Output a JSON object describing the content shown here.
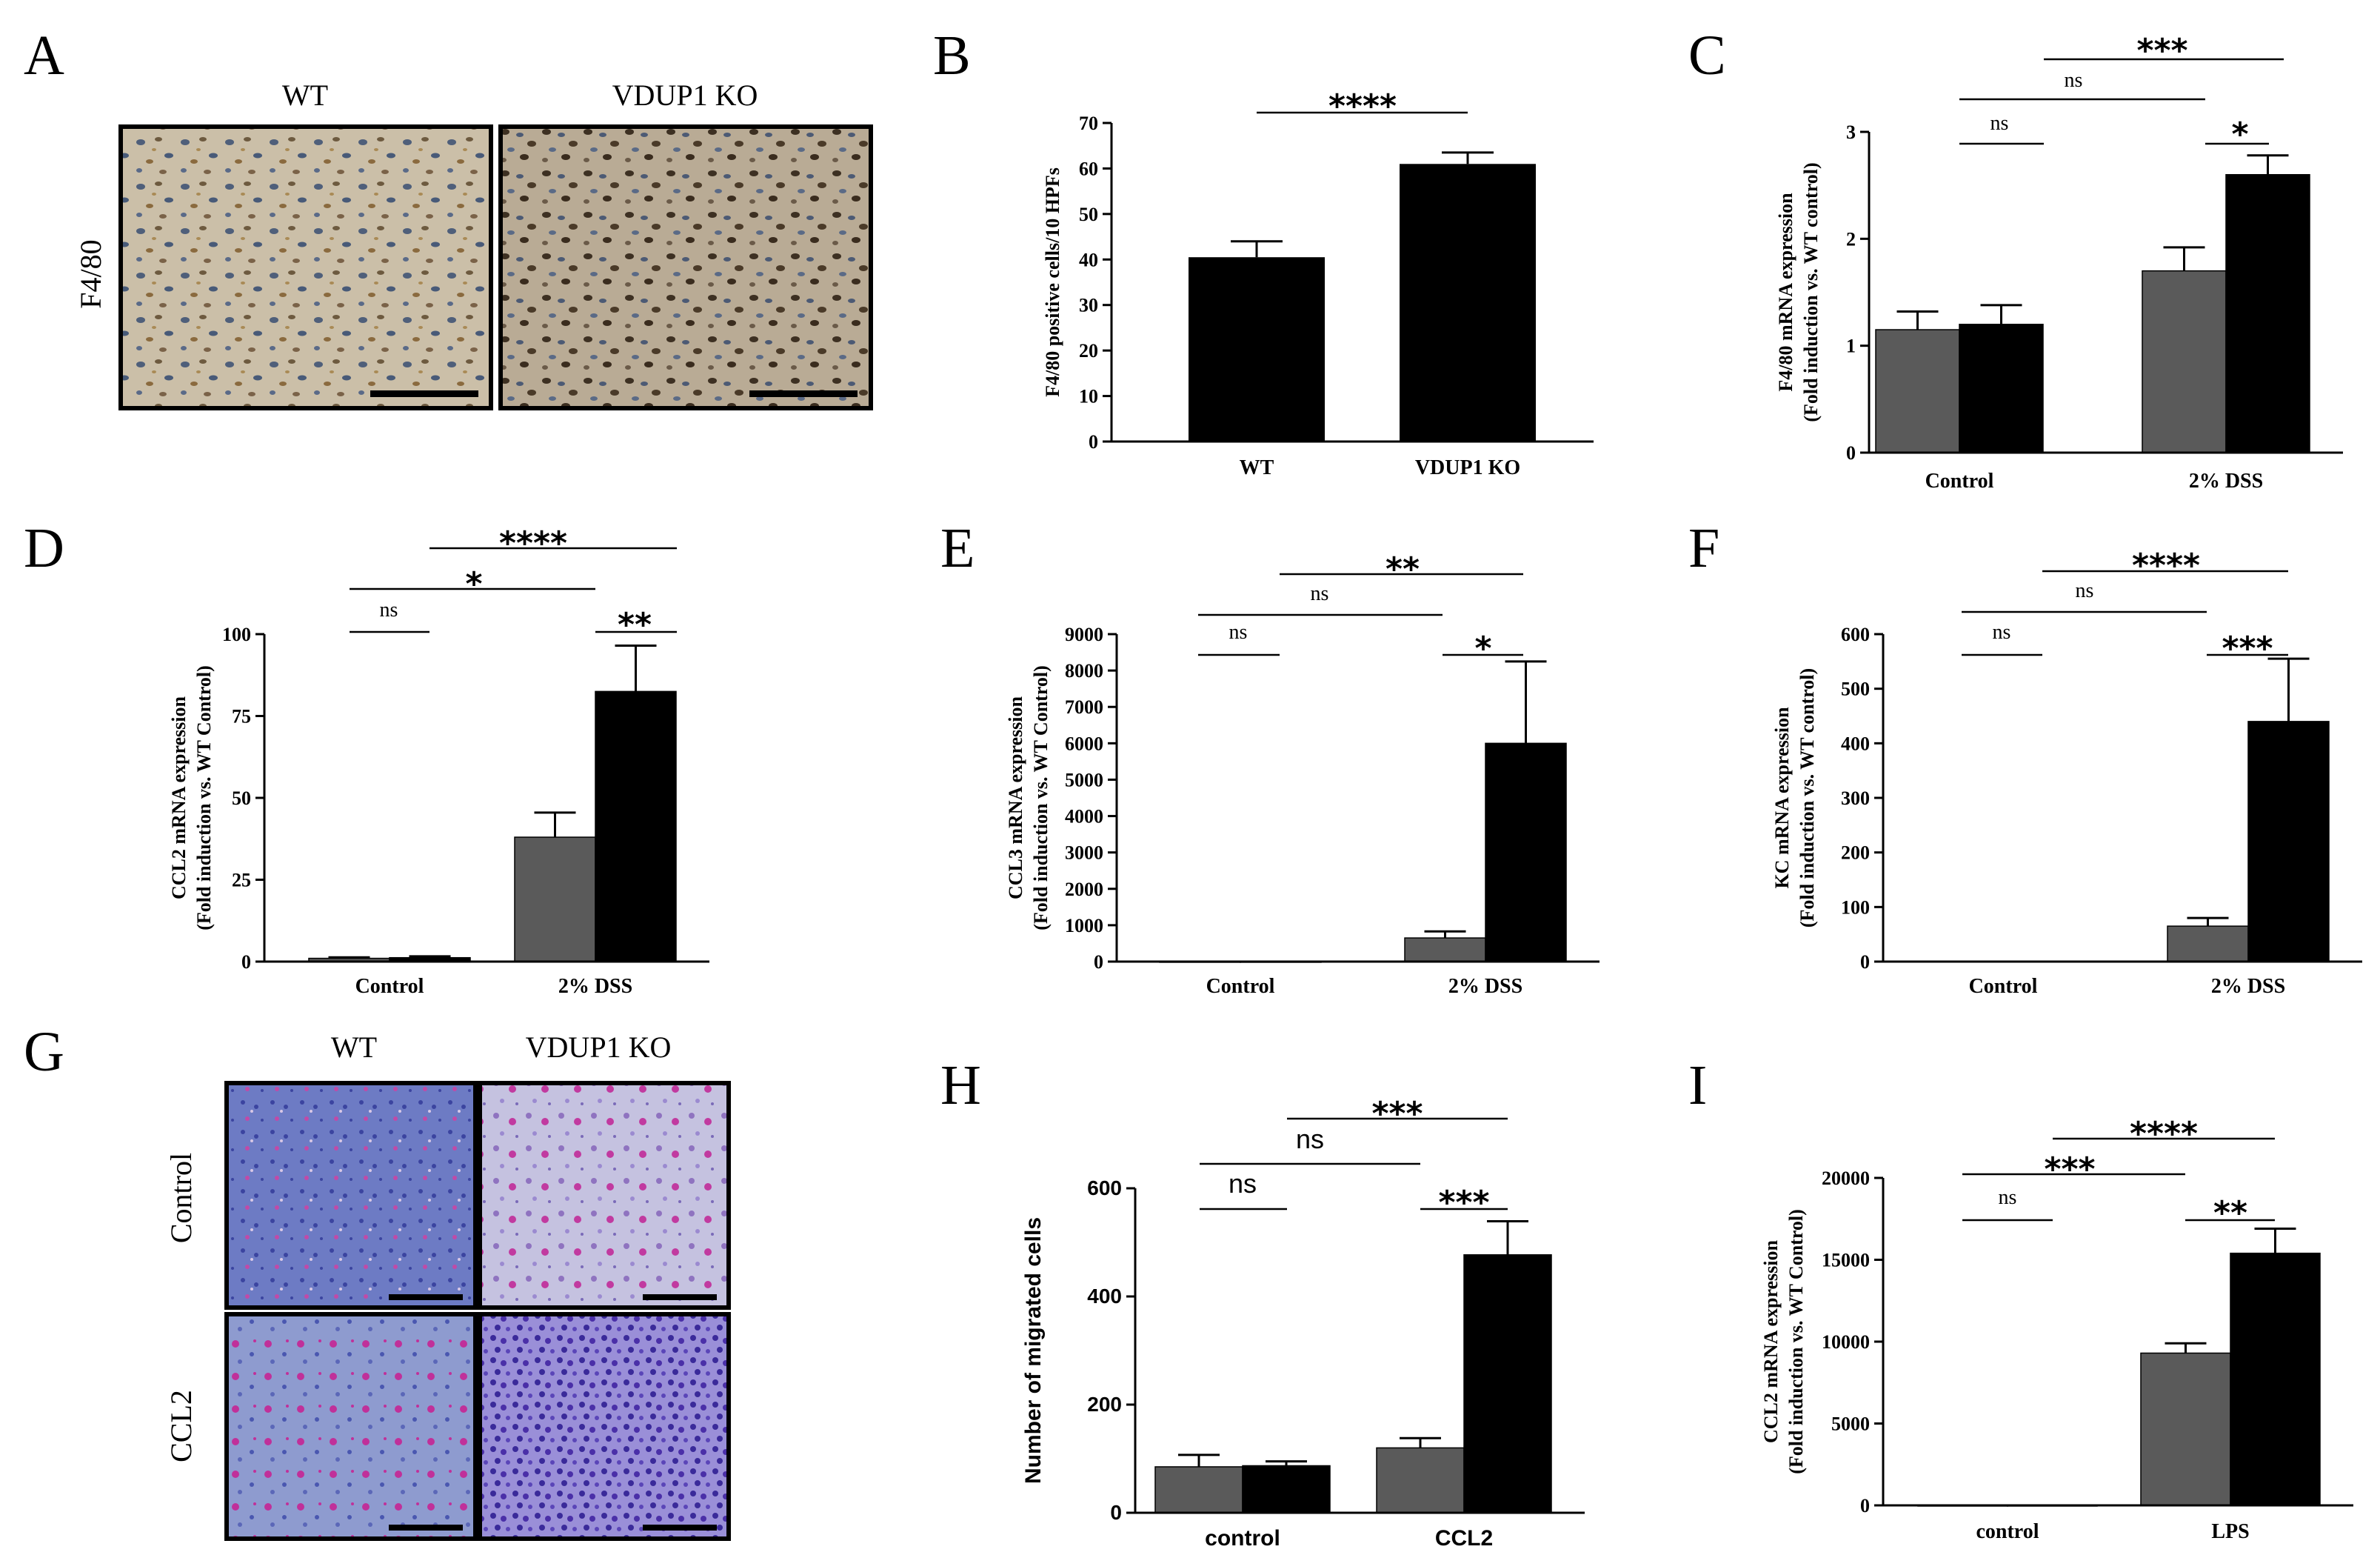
{
  "panel_letters": {
    "A": "A",
    "B": "B",
    "C": "C",
    "D": "D",
    "E": "E",
    "F": "F",
    "G": "G",
    "H": "H",
    "I": "I"
  },
  "micrographs_A": {
    "stain_label": "F4/80",
    "col_labels": [
      "WT",
      "VDUP1 KO"
    ]
  },
  "micrographs_G": {
    "col_labels": [
      "WT",
      "VDUP1 KO"
    ],
    "row_labels": [
      "Control",
      "CCL2"
    ]
  },
  "colors": {
    "wt": "#5a5a5a",
    "ko": "#000000"
  },
  "chart_data": [
    {
      "id": "B",
      "type": "bar",
      "ylabel": "F4/80 positive cells/10 HPFs",
      "categories": [
        "WT",
        "VDUP1 KO"
      ],
      "values": [
        40.5,
        61
      ],
      "errors": [
        3.5,
        2.5
      ],
      "ylim": [
        0,
        70
      ],
      "yticks": [
        "0",
        "10",
        "20",
        "30",
        "40",
        "50",
        "60",
        "70"
      ],
      "ytick_vals": [
        0,
        10,
        20,
        30,
        40,
        50,
        60,
        70
      ],
      "annotations": [
        {
          "text": "****"
        }
      ]
    },
    {
      "id": "C",
      "type": "bar",
      "ylabel": [
        "F4/80 mRNA expression",
        "(Fold induction vs. WT control)"
      ],
      "categories": [
        "Control",
        "2% DSS"
      ],
      "series": [
        {
          "values": [
            1.15,
            1.7
          ],
          "errors": [
            0.17,
            0.22
          ]
        },
        {
          "values": [
            1.2,
            2.6
          ],
          "errors": [
            0.18,
            0.18
          ]
        }
      ],
      "ylim": [
        0,
        3
      ],
      "yticks": [
        "0",
        "1",
        "2",
        "3"
      ],
      "ytick_vals": [
        0,
        1,
        2,
        3
      ],
      "annotations": [
        {
          "text": "ns"
        },
        {
          "text": "*"
        },
        {
          "text": "ns"
        },
        {
          "text": "***"
        }
      ]
    },
    {
      "id": "D",
      "type": "bar",
      "ylabel": [
        "CCL2 mRNA expression",
        "(Fold induction vs. WT Control)"
      ],
      "categories": [
        "Control",
        "2% DSS"
      ],
      "series": [
        {
          "values": [
            1,
            38
          ],
          "errors": [
            0.3,
            7.5
          ]
        },
        {
          "values": [
            1.2,
            82.5
          ],
          "errors": [
            0.4,
            14
          ]
        }
      ],
      "ylim": [
        0,
        100
      ],
      "yticks": [
        "0",
        "25",
        "50",
        "75",
        "100"
      ],
      "ytick_vals": [
        0,
        25,
        50,
        75,
        100
      ],
      "annotations": [
        {
          "text": "ns"
        },
        {
          "text": "**"
        },
        {
          "text": "*"
        },
        {
          "text": "****"
        }
      ]
    },
    {
      "id": "E",
      "type": "bar",
      "ylabel": [
        "CCL3 mRNA expression",
        "(Fold induction vs. WT Control)"
      ],
      "categories": [
        "Control",
        "2% DSS"
      ],
      "series": [
        {
          "values": [
            1,
            650
          ],
          "errors": [
            0,
            180
          ]
        },
        {
          "values": [
            1,
            6000
          ],
          "errors": [
            0,
            2250
          ]
        }
      ],
      "ylim": [
        0,
        9000
      ],
      "yticks": [
        "0",
        "1000",
        "2000",
        "3000",
        "4000",
        "5000",
        "6000",
        "7000",
        "8000",
        "9000"
      ],
      "ytick_vals": [
        0,
        1000,
        2000,
        3000,
        4000,
        5000,
        6000,
        7000,
        8000,
        9000
      ],
      "annotations": [
        {
          "text": "ns"
        },
        {
          "text": "*"
        },
        {
          "text": "ns"
        },
        {
          "text": "**"
        }
      ]
    },
    {
      "id": "F",
      "type": "bar",
      "ylabel": [
        "KC mRNA expression",
        "(Fold induction vs. WT control)"
      ],
      "categories": [
        "Control",
        "2% DSS"
      ],
      "series": [
        {
          "values": [
            1,
            65
          ],
          "errors": [
            0,
            15
          ]
        },
        {
          "values": [
            1,
            440
          ],
          "errors": [
            0,
            115
          ]
        }
      ],
      "ylim": [
        0,
        600
      ],
      "yticks": [
        "0",
        "100",
        "200",
        "300",
        "400",
        "500",
        "600"
      ],
      "ytick_vals": [
        0,
        100,
        200,
        300,
        400,
        500,
        600
      ],
      "annotations": [
        {
          "text": "ns"
        },
        {
          "text": "***"
        },
        {
          "text": "ns"
        },
        {
          "text": "****"
        }
      ]
    },
    {
      "id": "H",
      "type": "bar",
      "ylabel": "Number of migrated cells",
      "categories": [
        "control",
        "CCL2"
      ],
      "series": [
        {
          "values": [
            85,
            120
          ],
          "errors": [
            22,
            18
          ]
        },
        {
          "values": [
            87,
            477
          ],
          "errors": [
            8,
            62
          ]
        }
      ],
      "ylim": [
        0,
        600
      ],
      "yticks": [
        "0",
        "200",
        "400",
        "600"
      ],
      "ytick_vals": [
        0,
        200,
        400,
        600
      ],
      "annotations": [
        {
          "text": "ns"
        },
        {
          "text": "***"
        },
        {
          "text": "ns"
        },
        {
          "text": "***"
        }
      ]
    },
    {
      "id": "I",
      "type": "bar",
      "ylabel": [
        "CCL2 mRNA expression",
        "(Fold induction vs. WT Control)"
      ],
      "categories": [
        "control",
        "LPS"
      ],
      "series": [
        {
          "values": [
            1,
            9300
          ],
          "errors": [
            0,
            600
          ]
        },
        {
          "values": [
            1,
            15400
          ],
          "errors": [
            0,
            1500
          ]
        }
      ],
      "ylim": [
        0,
        20000
      ],
      "yticks": [
        "0",
        "5000",
        "10000",
        "15000",
        "20000"
      ],
      "ytick_vals": [
        0,
        5000,
        10000,
        15000,
        20000
      ],
      "annotations": [
        {
          "text": "ns"
        },
        {
          "text": "**"
        },
        {
          "text": "***"
        },
        {
          "text": "****"
        }
      ]
    }
  ]
}
